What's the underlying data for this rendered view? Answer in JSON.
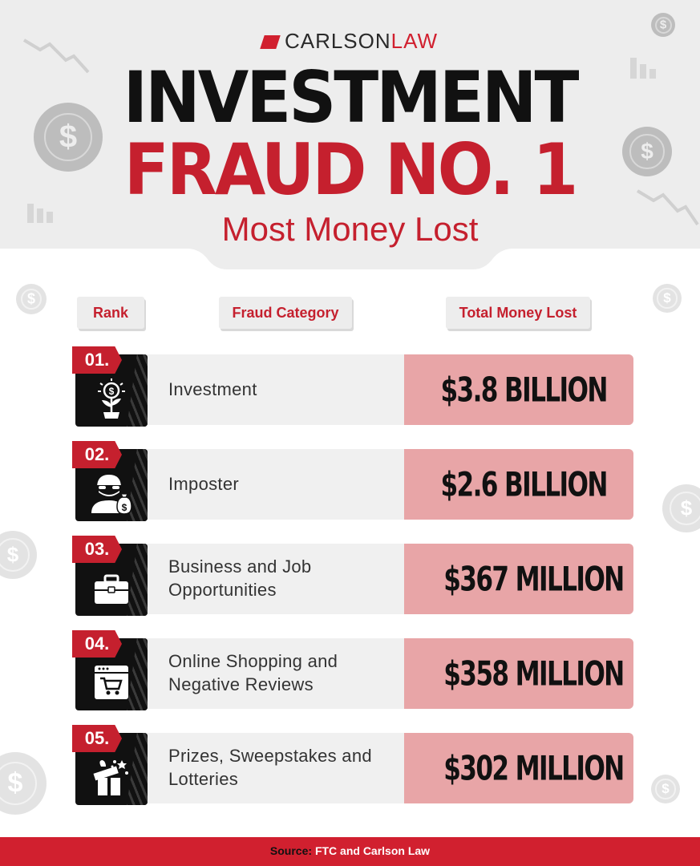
{
  "brand": {
    "part1": "CARLSON",
    "part2": "LAW"
  },
  "title": {
    "line1": "INVESTMENT",
    "line2": "FRAUD NO. 1",
    "subtitle": "Most Money Lost"
  },
  "columns": {
    "rank": "Rank",
    "category": "Fraud Category",
    "amount": "Total Money Lost"
  },
  "rows": [
    {
      "rank": "01.",
      "category": "Investment",
      "amount": "$3.8 BILLION",
      "icon": "plant-coin-icon"
    },
    {
      "rank": "02.",
      "category": "Imposter",
      "amount": "$2.6 BILLION",
      "icon": "burglar-moneybag-icon"
    },
    {
      "rank": "03.",
      "category": "Business and Job Opportunities",
      "amount": "$367 MILLION",
      "icon": "briefcase-icon"
    },
    {
      "rank": "04.",
      "category": "Online Shopping and Negative Reviews",
      "amount": "$358 MILLION",
      "icon": "browser-cart-icon"
    },
    {
      "rank": "05.",
      "category": "Prizes, Sweepstakes and Lotteries",
      "amount": "$302 MILLION",
      "icon": "gift-box-icon"
    }
  ],
  "source": {
    "label": "Source:",
    "text": "FTC and Carlson Law"
  },
  "colors": {
    "accent": "#c5202e",
    "amount_bg": "#e8a5a7",
    "header_bg": "#ededed"
  }
}
